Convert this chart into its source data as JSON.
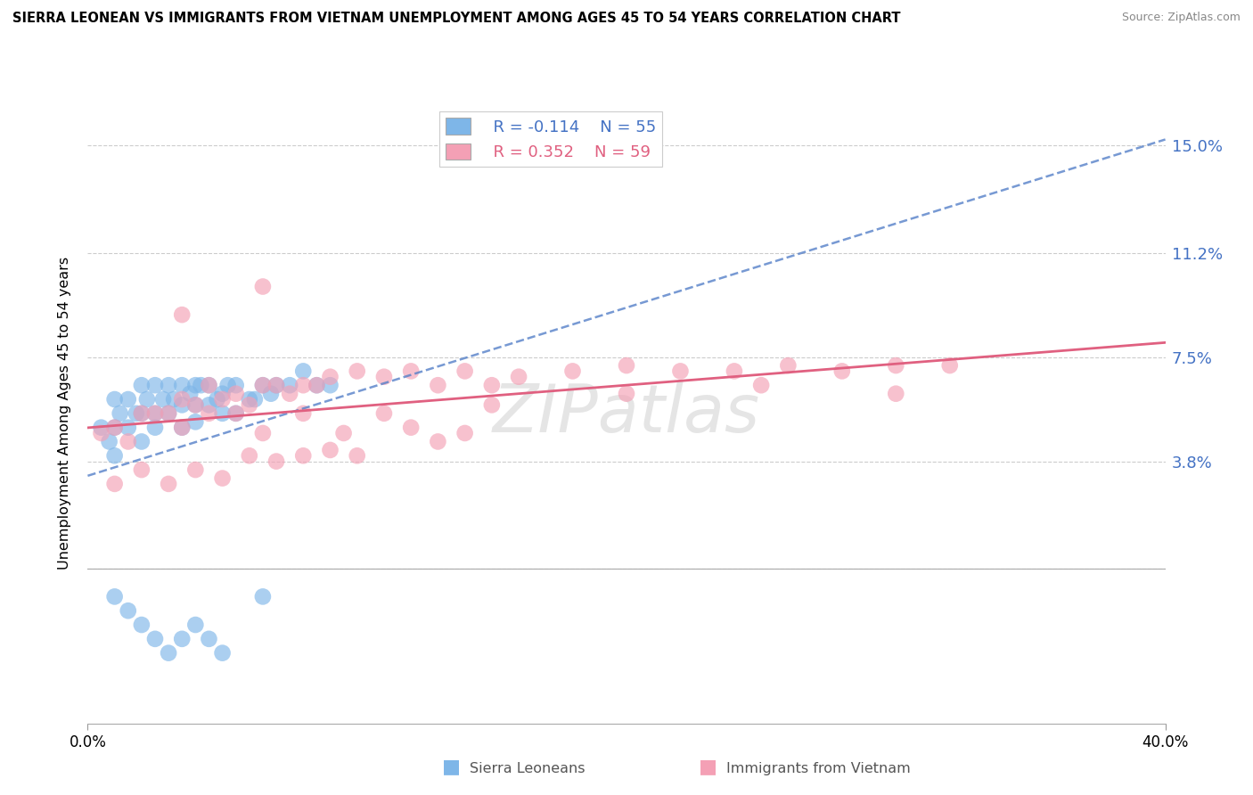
{
  "title": "SIERRA LEONEAN VS IMMIGRANTS FROM VIETNAM UNEMPLOYMENT AMONG AGES 45 TO 54 YEARS CORRELATION CHART",
  "source": "Source: ZipAtlas.com",
  "ylabel": "Unemployment Among Ages 45 to 54 years",
  "yticks": [
    0.0,
    0.038,
    0.075,
    0.112,
    0.15
  ],
  "ytick_labels": [
    "",
    "3.8%",
    "7.5%",
    "11.2%",
    "15.0%"
  ],
  "xlim": [
    0.0,
    0.4
  ],
  "ylim": [
    -0.055,
    0.165
  ],
  "color_sierra": "#7EB6E8",
  "color_vietnam": "#F4A0B5",
  "color_line_sierra": "#5580C8",
  "color_line_vietnam": "#E06080",
  "sierra_x": [
    0.005,
    0.008,
    0.01,
    0.01,
    0.01,
    0.012,
    0.015,
    0.015,
    0.018,
    0.02,
    0.02,
    0.02,
    0.022,
    0.025,
    0.025,
    0.025,
    0.028,
    0.03,
    0.03,
    0.032,
    0.035,
    0.035,
    0.035,
    0.038,
    0.04,
    0.04,
    0.04,
    0.042,
    0.045,
    0.045,
    0.048,
    0.05,
    0.05,
    0.052,
    0.055,
    0.055,
    0.06,
    0.062,
    0.065,
    0.068,
    0.07,
    0.075,
    0.08,
    0.085,
    0.09,
    0.01,
    0.015,
    0.02,
    0.025,
    0.03,
    0.035,
    0.04,
    0.045,
    0.05,
    0.065
  ],
  "sierra_y": [
    0.05,
    0.045,
    0.06,
    0.05,
    0.04,
    0.055,
    0.06,
    0.05,
    0.055,
    0.065,
    0.055,
    0.045,
    0.06,
    0.065,
    0.055,
    0.05,
    0.06,
    0.065,
    0.055,
    0.06,
    0.065,
    0.058,
    0.05,
    0.062,
    0.065,
    0.058,
    0.052,
    0.065,
    0.065,
    0.058,
    0.06,
    0.062,
    0.055,
    0.065,
    0.065,
    0.055,
    0.06,
    0.06,
    0.065,
    0.062,
    0.065,
    0.065,
    0.07,
    0.065,
    0.065,
    -0.01,
    -0.015,
    -0.02,
    -0.025,
    -0.03,
    -0.025,
    -0.02,
    -0.025,
    -0.03,
    -0.01
  ],
  "vietnam_x": [
    0.005,
    0.01,
    0.015,
    0.02,
    0.025,
    0.03,
    0.035,
    0.04,
    0.045,
    0.05,
    0.055,
    0.06,
    0.065,
    0.07,
    0.075,
    0.08,
    0.085,
    0.09,
    0.1,
    0.11,
    0.12,
    0.13,
    0.14,
    0.15,
    0.16,
    0.18,
    0.2,
    0.22,
    0.24,
    0.26,
    0.28,
    0.3,
    0.32,
    0.035,
    0.045,
    0.055,
    0.065,
    0.08,
    0.095,
    0.11,
    0.13,
    0.01,
    0.02,
    0.03,
    0.04,
    0.05,
    0.06,
    0.07,
    0.08,
    0.09,
    0.1,
    0.12,
    0.14,
    0.15,
    0.2,
    0.25,
    0.3,
    0.035,
    0.065
  ],
  "vietnam_y": [
    0.048,
    0.05,
    0.045,
    0.055,
    0.055,
    0.055,
    0.06,
    0.058,
    0.065,
    0.06,
    0.062,
    0.058,
    0.065,
    0.065,
    0.062,
    0.065,
    0.065,
    0.068,
    0.07,
    0.068,
    0.07,
    0.065,
    0.07,
    0.065,
    0.068,
    0.07,
    0.072,
    0.07,
    0.07,
    0.072,
    0.07,
    0.072,
    0.072,
    0.05,
    0.055,
    0.055,
    0.048,
    0.055,
    0.048,
    0.055,
    0.045,
    0.03,
    0.035,
    0.03,
    0.035,
    0.032,
    0.04,
    0.038,
    0.04,
    0.042,
    0.04,
    0.05,
    0.048,
    0.058,
    0.062,
    0.065,
    0.062,
    0.09,
    0.1
  ]
}
